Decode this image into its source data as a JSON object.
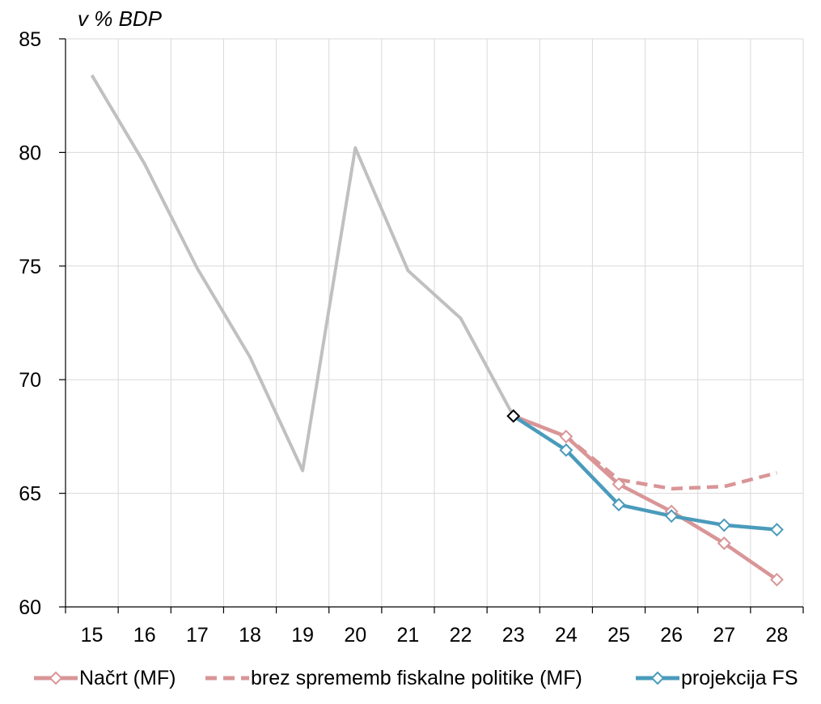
{
  "unit_label": "v % BDP",
  "colors": {
    "historical": "#c0c0c0",
    "nacrt": "#d99597",
    "brez": "#d99597",
    "projekcija": "#4a9bbb",
    "marker_2023_stroke": "#000000",
    "grid": "#d9d9d9"
  },
  "legend": {
    "nacrt_label": "Načrt (MF)",
    "brez_label": "brez sprememb fiskalne politike (MF)",
    "projekcija_label": "projekcija FS"
  },
  "chart_data": {
    "type": "line",
    "categories": [
      "15",
      "16",
      "17",
      "18",
      "19",
      "20",
      "21",
      "22",
      "23",
      "24",
      "25",
      "26",
      "27",
      "28"
    ],
    "ylim": [
      60,
      85
    ],
    "yticks": [
      60,
      65,
      70,
      75,
      80,
      85
    ],
    "ylabel": "v % BDP",
    "xlabel": "",
    "grid": true,
    "legend_position": "bottom",
    "series": [
      {
        "key": "historical",
        "values": [
          83.4,
          79.5,
          74.9,
          71.0,
          66.0,
          80.2,
          74.8,
          72.7,
          68.4,
          null,
          null,
          null,
          null,
          null
        ]
      },
      {
        "key": "nacrt",
        "name": "Načrt (MF)",
        "values": [
          null,
          null,
          null,
          null,
          null,
          null,
          null,
          null,
          68.4,
          67.5,
          65.4,
          64.2,
          62.8,
          61.2
        ]
      },
      {
        "key": "brez",
        "name": "brez sprememb fiskalne politike (MF)",
        "values": [
          null,
          null,
          null,
          null,
          null,
          null,
          null,
          null,
          68.4,
          67.5,
          65.6,
          65.2,
          65.3,
          65.9
        ]
      },
      {
        "key": "projekcija",
        "name": "projekcija FS",
        "values": [
          null,
          null,
          null,
          null,
          null,
          null,
          null,
          null,
          68.4,
          66.9,
          64.5,
          64.0,
          63.6,
          63.4
        ]
      }
    ]
  }
}
